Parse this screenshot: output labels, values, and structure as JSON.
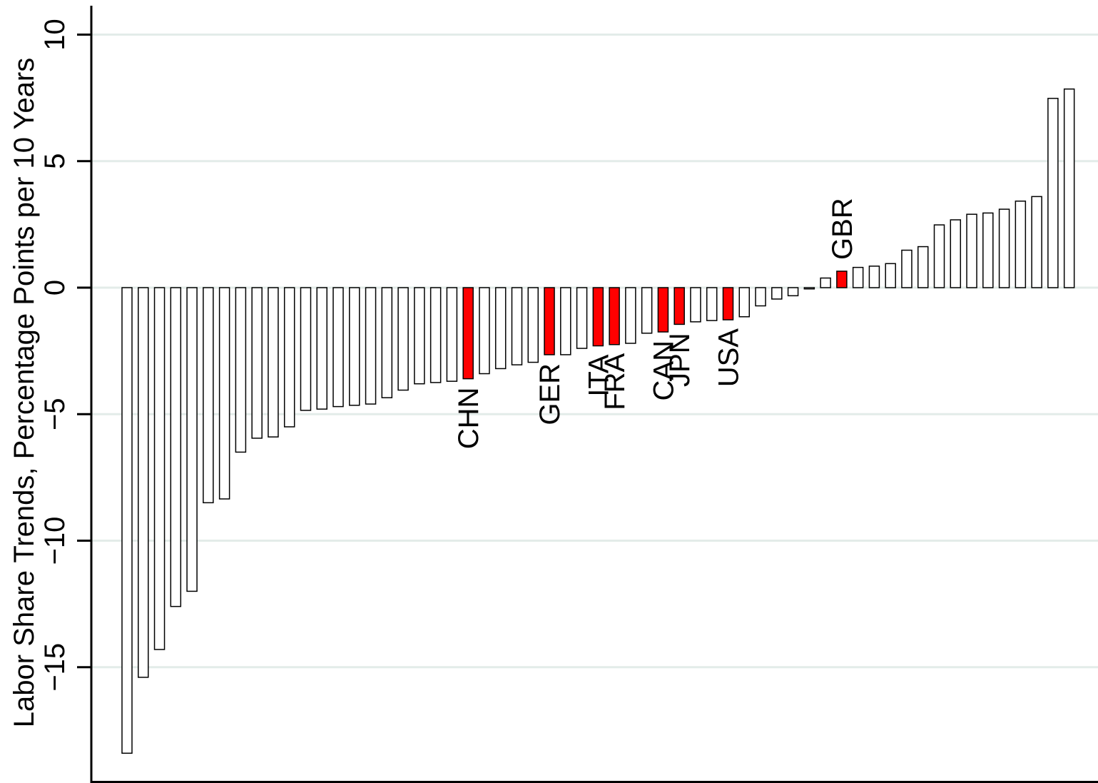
{
  "chart_data": {
    "type": "bar",
    "title": "",
    "xlabel": "",
    "ylabel": "Labor Share Trends, Percentage Points per 10 Years",
    "ylim": [
      -19.4,
      11.1
    ],
    "yticks": [
      10,
      5,
      0,
      -5,
      -10,
      -15
    ],
    "ytick_labels": [
      "10",
      "5",
      "0",
      "−5",
      "−10",
      "−15"
    ],
    "grid": true,
    "legend": "none",
    "colors": {
      "highlight": "#ff0000",
      "default": "#ffffff",
      "outline": "#000000",
      "grid": "#e3ece9"
    },
    "values": [
      -18.4,
      -15.4,
      -14.3,
      -12.6,
      -12.0,
      -8.5,
      -8.35,
      -6.5,
      -5.95,
      -5.9,
      -5.5,
      -4.85,
      -4.8,
      -4.7,
      -4.65,
      -4.6,
      -4.35,
      -4.05,
      -3.8,
      -3.75,
      -3.7,
      -3.6,
      -3.4,
      -3.2,
      -3.05,
      -2.95,
      -2.65,
      -2.65,
      -2.4,
      -2.3,
      -2.25,
      -2.2,
      -1.8,
      -1.75,
      -1.45,
      -1.35,
      -1.3,
      -1.27,
      -1.15,
      -0.72,
      -0.45,
      -0.32,
      -0.05,
      0.38,
      0.65,
      0.8,
      0.85,
      0.95,
      1.48,
      1.62,
      2.48,
      2.68,
      2.9,
      2.95,
      3.1,
      3.42,
      3.6,
      7.48,
      7.85
    ],
    "highlights": [
      {
        "index": 21,
        "label": "CHN"
      },
      {
        "index": 26,
        "label": "GER"
      },
      {
        "index": 29,
        "label": "ITA"
      },
      {
        "index": 30,
        "label": "FRA"
      },
      {
        "index": 33,
        "label": "CAN"
      },
      {
        "index": 34,
        "label": "JPN"
      },
      {
        "index": 37,
        "label": "USA"
      },
      {
        "index": 44,
        "label": "GBR"
      }
    ]
  }
}
